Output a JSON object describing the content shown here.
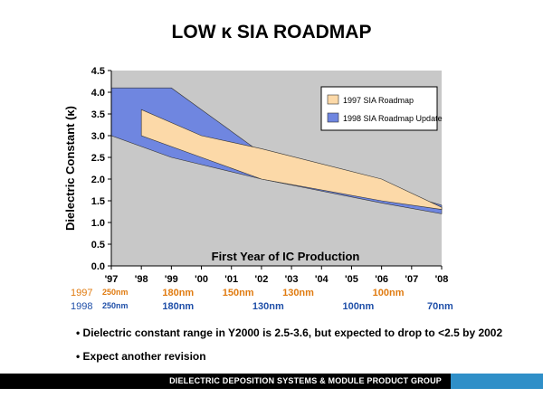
{
  "title": "LOW κ SIA ROADMAP",
  "chart_data": {
    "type": "area",
    "ylabel": "Dielectric Constant (κ)",
    "xlabel": "First Year of IC Production",
    "ylim": [
      0,
      4.5
    ],
    "yticks": [
      "0.0",
      "0.5",
      "1.0",
      "1.5",
      "2.0",
      "2.5",
      "3.0",
      "3.5",
      "4.0",
      "4.5"
    ],
    "categories": [
      "'97",
      "'98",
      "'99",
      "'00",
      "'01",
      "'02",
      "'03",
      "'04",
      "'05",
      "'06",
      "'07",
      "'08"
    ],
    "legend_position": "top-right",
    "grid": false,
    "series": [
      {
        "name": "1997 SIA Roadmap",
        "color": "#fcd9a8",
        "upper": [
          {
            "x": 1,
            "y": 3.6
          },
          {
            "x": 3,
            "y": 3.0
          },
          {
            "x": 5,
            "y": 2.7
          },
          {
            "x": 9,
            "y": 2.0
          },
          {
            "x": 11,
            "y": 1.35
          }
        ],
        "lower": [
          {
            "x": 1,
            "y": 3.0
          },
          {
            "x": 3,
            "y": 2.5
          },
          {
            "x": 5,
            "y": 2.0
          },
          {
            "x": 9,
            "y": 1.5
          },
          {
            "x": 11,
            "y": 1.3
          }
        ]
      },
      {
        "name": "1998 SIA Roadmap Update",
        "color": "#6f86e0",
        "upper": [
          {
            "x": 0,
            "y": 4.1
          },
          {
            "x": 2,
            "y": 4.1
          },
          {
            "x": 5,
            "y": 2.6
          },
          {
            "x": 9,
            "y": 1.8
          },
          {
            "x": 11,
            "y": 1.4
          }
        ],
        "lower": [
          {
            "x": 0,
            "y": 3.0
          },
          {
            "x": 2,
            "y": 2.5
          },
          {
            "x": 5,
            "y": 2.0
          },
          {
            "x": 9,
            "y": 1.45
          },
          {
            "x": 11,
            "y": 1.2
          }
        ]
      }
    ],
    "nodes": [
      {
        "year": "1997",
        "color": "#e07b10",
        "labels": [
          {
            "x": 0,
            "text": "250nm"
          },
          {
            "x": 2,
            "text": "180nm"
          },
          {
            "x": 4,
            "text": "150nm"
          },
          {
            "x": 6,
            "text": "130nm"
          },
          {
            "x": 9,
            "text": "100nm"
          }
        ]
      },
      {
        "year": "1998",
        "color": "#1f4fa8",
        "labels": [
          {
            "x": 0,
            "text": "250nm"
          },
          {
            "x": 2,
            "text": "180nm"
          },
          {
            "x": 5,
            "text": "130nm"
          },
          {
            "x": 8,
            "text": "100nm"
          },
          {
            "x": 11,
            "text": "70nm"
          }
        ]
      }
    ]
  },
  "bullets": [
    "• Dielectric constant range in Y2000 is 2.5-3.6, but expected to drop to <2.5 by 2002",
    "• Expect another revision"
  ],
  "footer": "DIELECTRIC DEPOSITION SYSTEMS & MODULE PRODUCT GROUP"
}
